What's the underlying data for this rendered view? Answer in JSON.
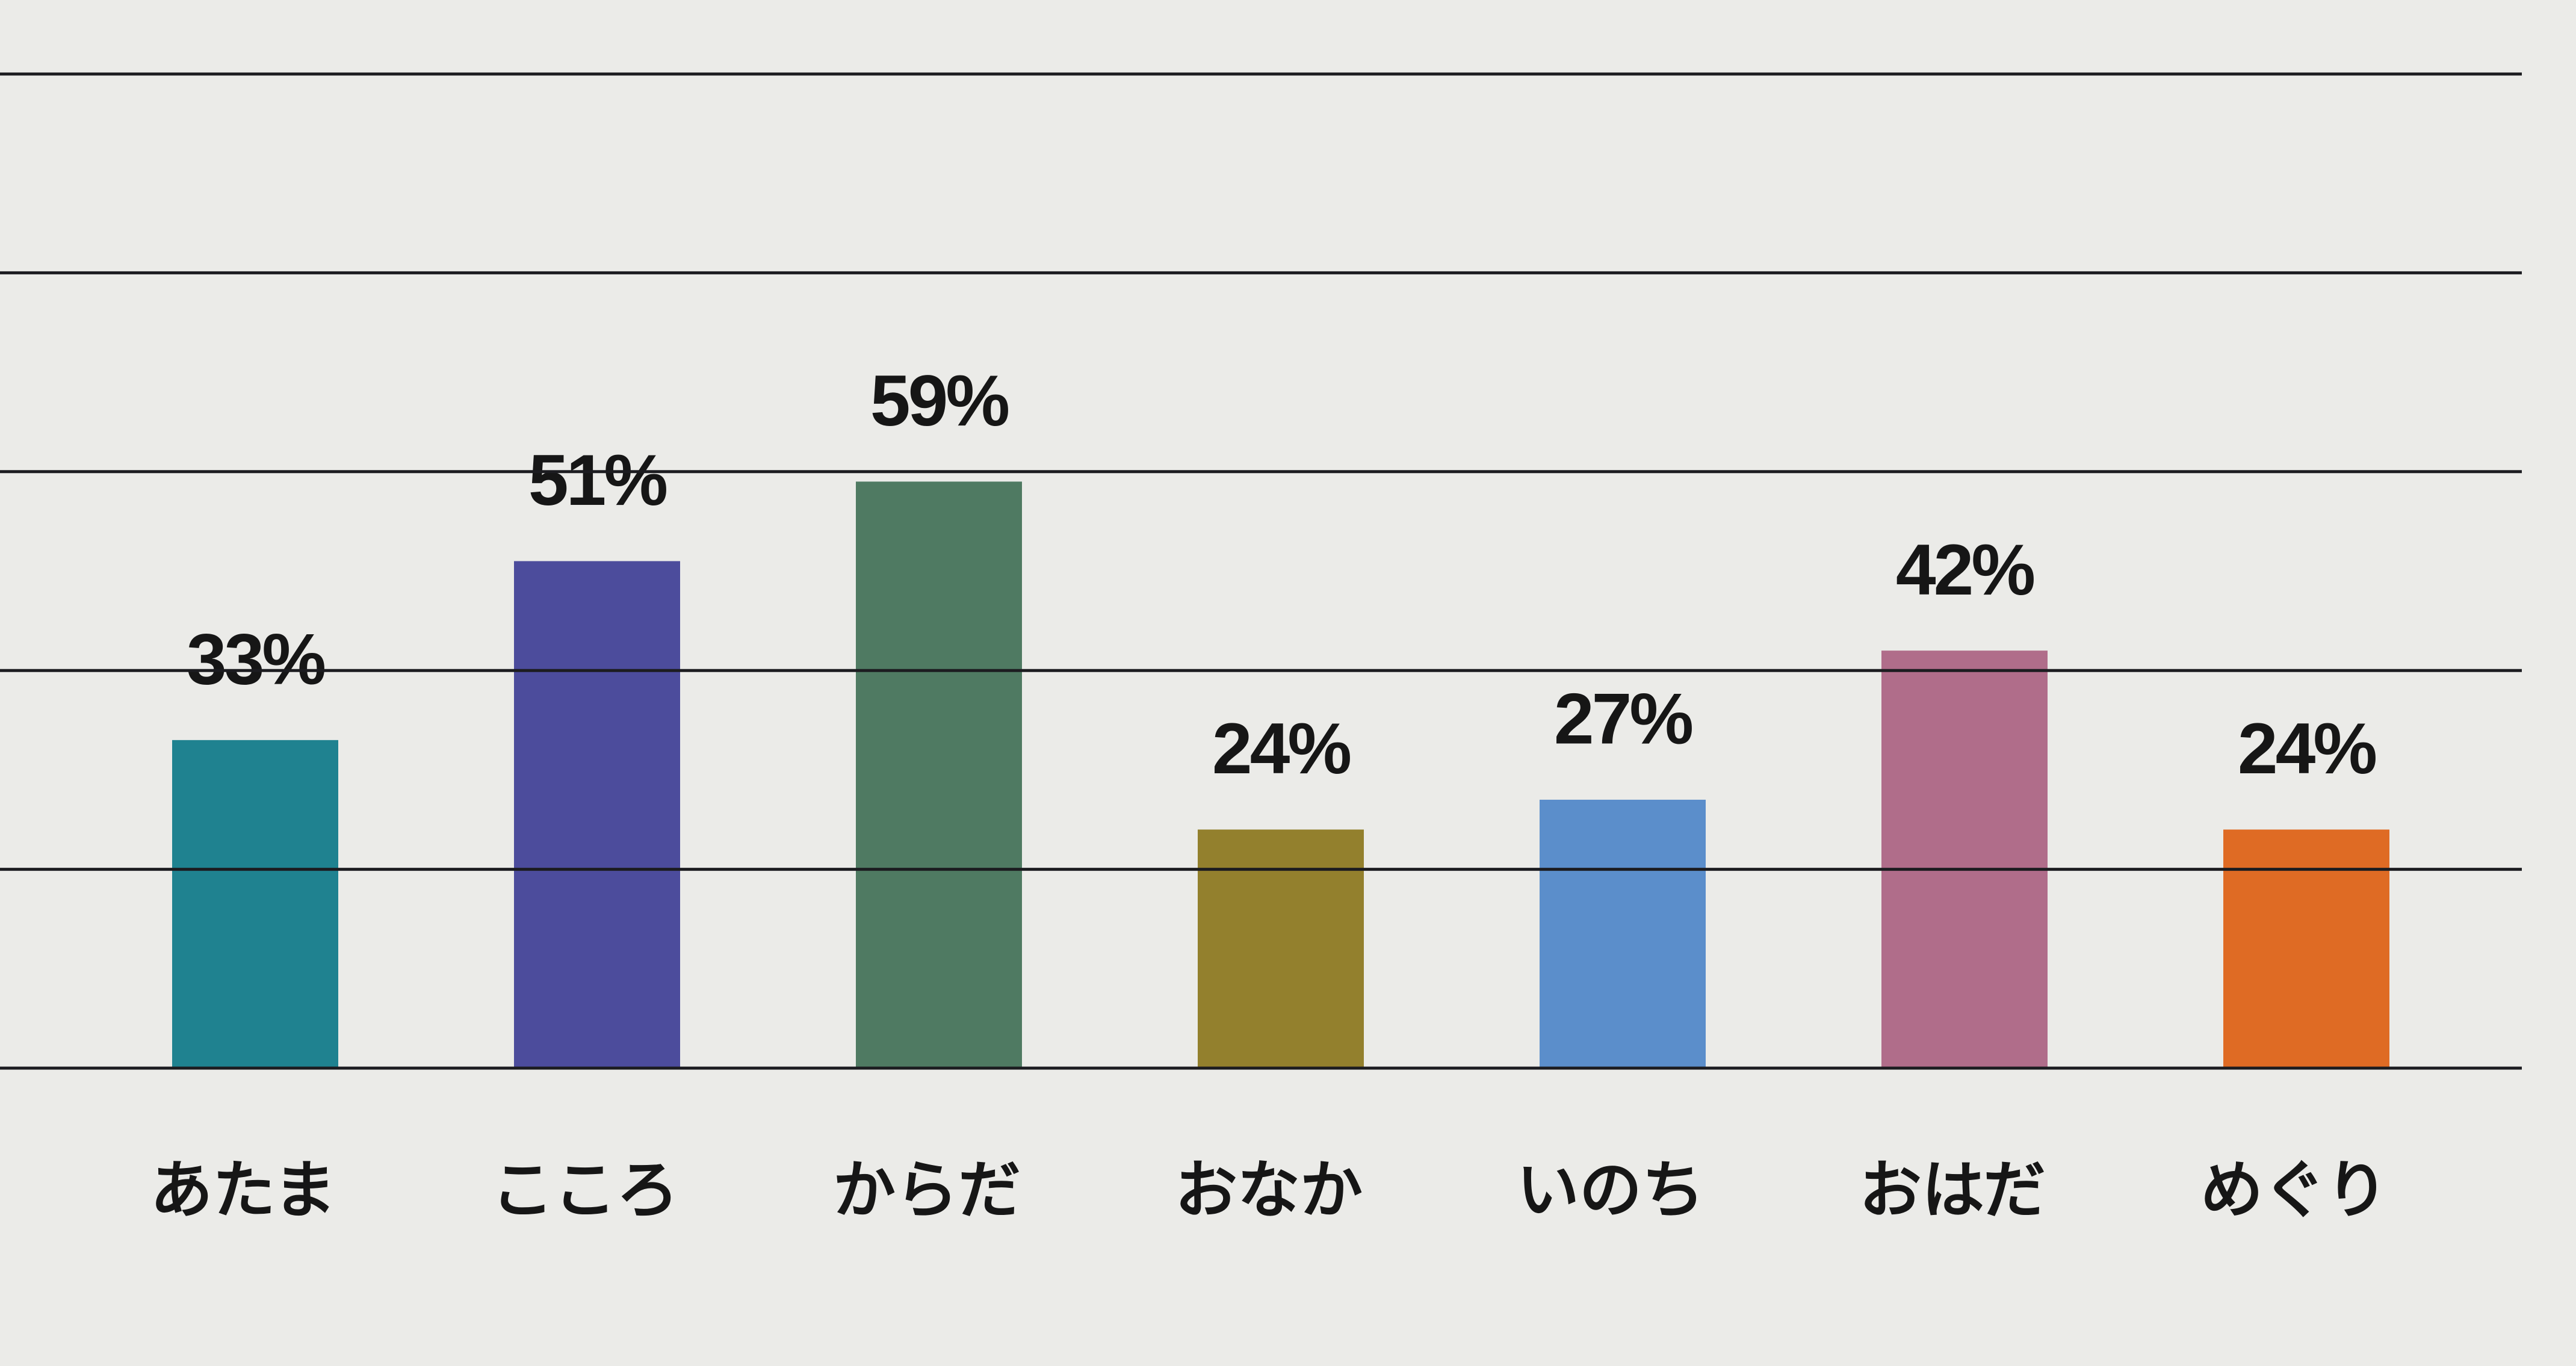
{
  "chart_data": {
    "type": "bar",
    "categories": [
      "あたま",
      "こころ",
      "からだ",
      "おなか",
      "いのち",
      "おはだ",
      "めぐり"
    ],
    "values": [
      33,
      51,
      59,
      24,
      27,
      42,
      24
    ],
    "value_labels": [
      "33%",
      "51%",
      "59%",
      "24%",
      "27%",
      "42%",
      "24%"
    ],
    "colors": [
      "#1f8290",
      "#4c4c9c",
      "#4f7a62",
      "#93802d",
      "#5b8ecb",
      "#b06d8a",
      "#df6b24"
    ],
    "ylim": [
      0,
      100
    ],
    "yticks": [
      0,
      20,
      40,
      60,
      80,
      100
    ],
    "grid": true
  }
}
